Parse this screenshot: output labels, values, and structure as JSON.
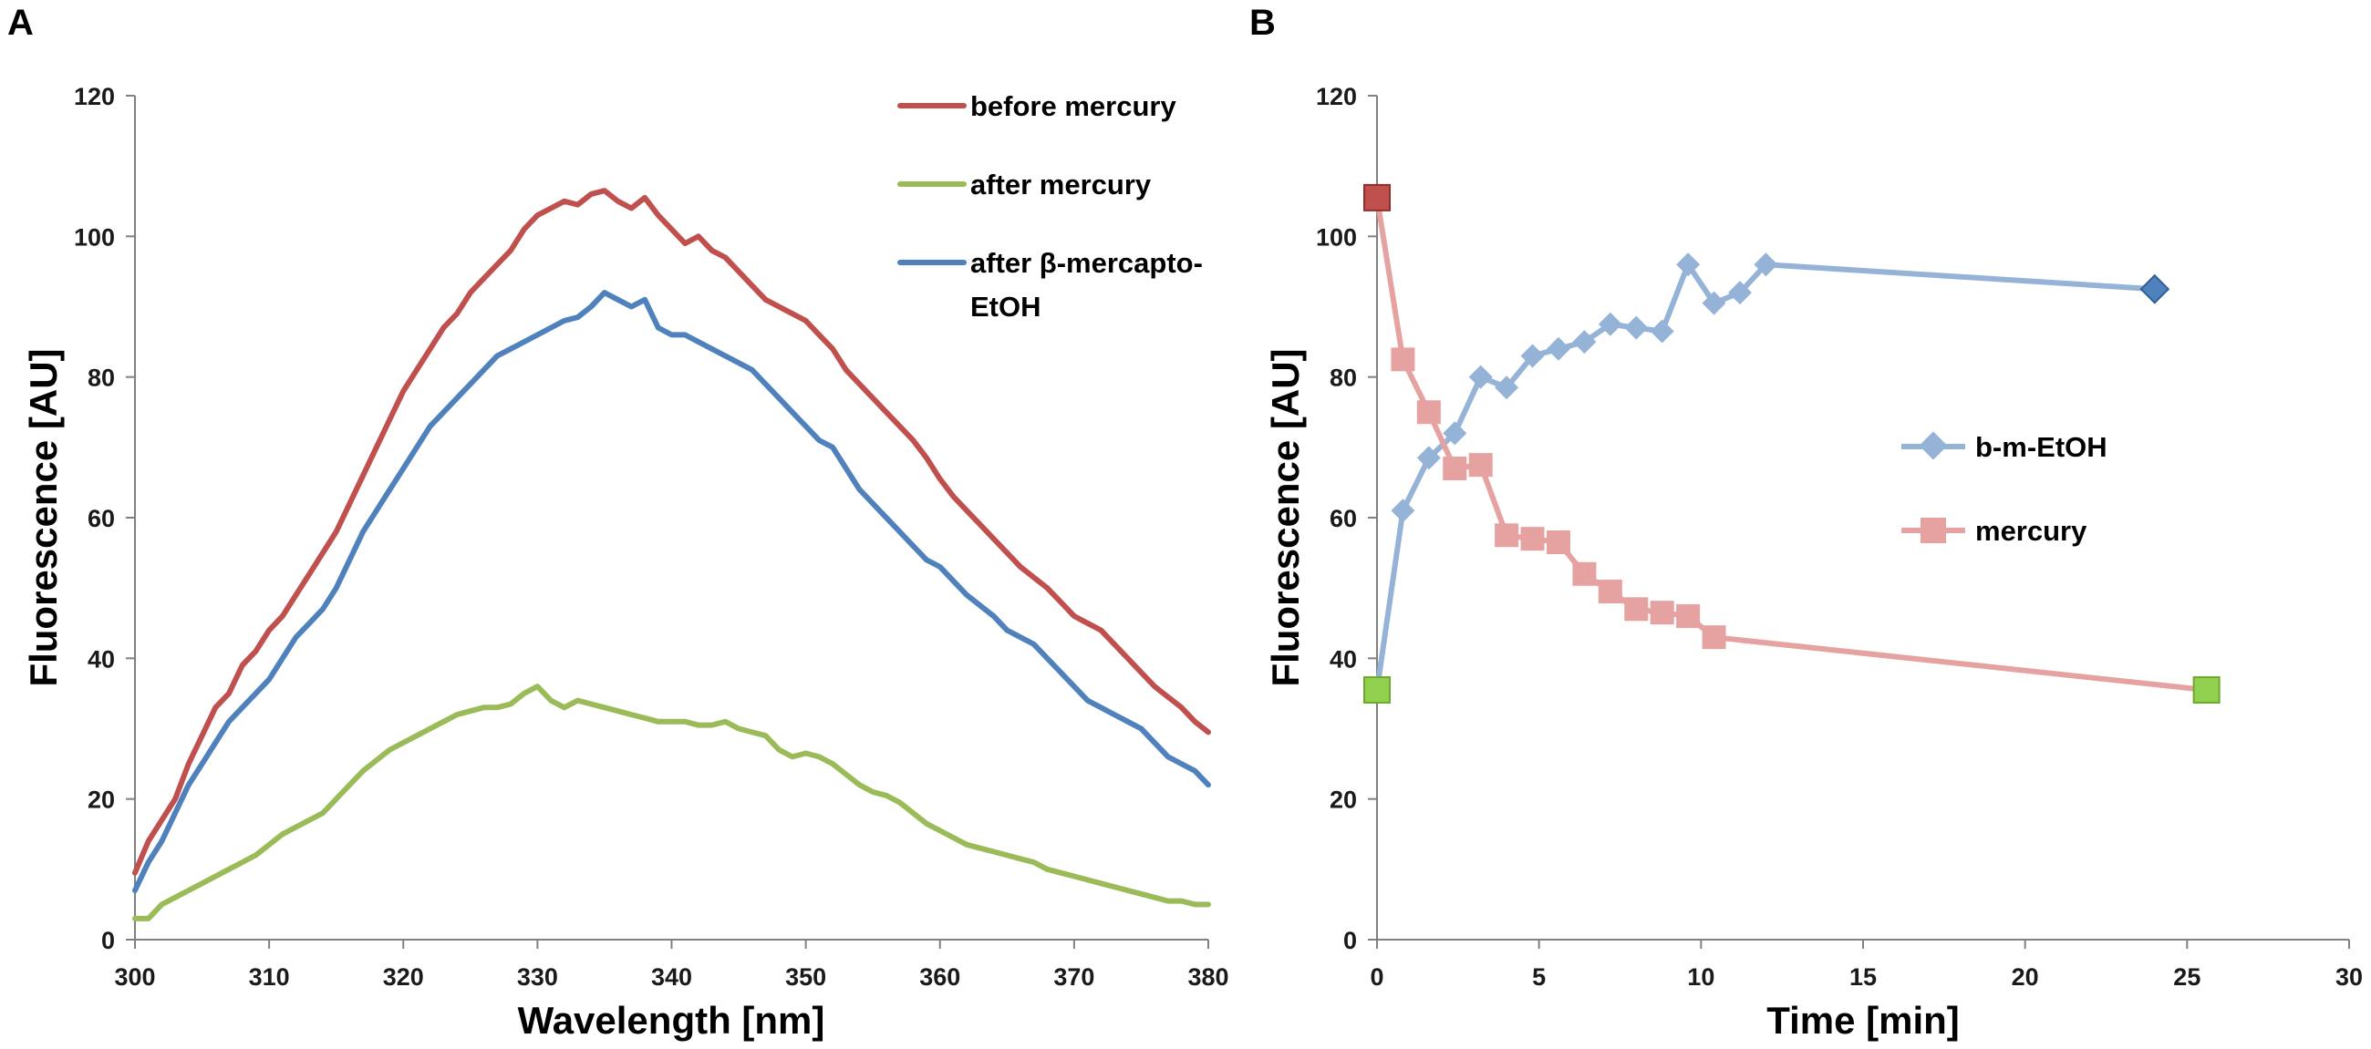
{
  "chart_data": [
    {
      "panel": "A",
      "type": "line",
      "xlabel": "Wavelength [nm]",
      "ylabel": "Fluorescence [AU]",
      "xlim": [
        300,
        380
      ],
      "ylim": [
        0,
        120
      ],
      "xticks": [
        300,
        310,
        320,
        330,
        340,
        350,
        360,
        370,
        380
      ],
      "yticks": [
        0,
        20,
        40,
        60,
        80,
        100,
        120
      ],
      "legend_position": "top-right",
      "series": [
        {
          "name": "before mercury",
          "color": "#c0504d",
          "x": [
            300,
            301,
            302,
            303,
            304,
            305,
            306,
            307,
            308,
            309,
            310,
            311,
            312,
            313,
            314,
            315,
            316,
            317,
            318,
            319,
            320,
            321,
            322,
            323,
            324,
            325,
            326,
            327,
            328,
            329,
            330,
            331,
            332,
            333,
            334,
            335,
            336,
            337,
            338,
            339,
            340,
            341,
            342,
            343,
            344,
            345,
            346,
            347,
            348,
            349,
            350,
            351,
            352,
            353,
            354,
            355,
            356,
            357,
            358,
            359,
            360,
            361,
            362,
            363,
            364,
            365,
            366,
            367,
            368,
            369,
            370,
            371,
            372,
            373,
            374,
            375,
            376,
            377,
            378,
            379,
            380
          ],
          "y": [
            9.5,
            14,
            17,
            20,
            25,
            29,
            33,
            35,
            39,
            41,
            44,
            46,
            49,
            52,
            55,
            58,
            62,
            66,
            70,
            74,
            78,
            81,
            84,
            87,
            89,
            92,
            94,
            96,
            98,
            101,
            103,
            104,
            105,
            104.5,
            106,
            106.5,
            105,
            104,
            105.5,
            103,
            101,
            99,
            100,
            98,
            97,
            95,
            93,
            91,
            90,
            89,
            88,
            86,
            84,
            81,
            79,
            77,
            75,
            73,
            71,
            68.5,
            65.5,
            63,
            61,
            59,
            57,
            55,
            53,
            51.5,
            50,
            48,
            46,
            45,
            44,
            42,
            40,
            38,
            36,
            34.5,
            33,
            31,
            29.5
          ]
        },
        {
          "name": "after mercury",
          "color": "#9bbb59",
          "x": [
            300,
            301,
            302,
            303,
            304,
            305,
            306,
            307,
            308,
            309,
            310,
            311,
            312,
            313,
            314,
            315,
            316,
            317,
            318,
            319,
            320,
            321,
            322,
            323,
            324,
            325,
            326,
            327,
            328,
            329,
            330,
            331,
            332,
            333,
            334,
            335,
            336,
            337,
            338,
            339,
            340,
            341,
            342,
            343,
            344,
            345,
            346,
            347,
            348,
            349,
            350,
            351,
            352,
            353,
            354,
            355,
            356,
            357,
            358,
            359,
            360,
            361,
            362,
            363,
            364,
            365,
            366,
            367,
            368,
            369,
            370,
            371,
            372,
            373,
            374,
            375,
            376,
            377,
            378,
            379,
            380
          ],
          "y": [
            3,
            3,
            5,
            6,
            7,
            8,
            9,
            10,
            11,
            12,
            13.5,
            15,
            16,
            17,
            18,
            20,
            22,
            24,
            25.5,
            27,
            28,
            29,
            30,
            31,
            32,
            32.5,
            33,
            33,
            33.5,
            35,
            36,
            34,
            33,
            34,
            33.5,
            33,
            32.5,
            32,
            31.5,
            31,
            31,
            31,
            30.5,
            30.5,
            31,
            30,
            29.5,
            29,
            27,
            26,
            26.5,
            26,
            25,
            23.5,
            22,
            21,
            20.5,
            19.5,
            18,
            16.5,
            15.5,
            14.5,
            13.5,
            13,
            12.5,
            12,
            11.5,
            11,
            10,
            9.5,
            9,
            8.5,
            8,
            7.5,
            7,
            6.5,
            6,
            5.5,
            5.5,
            5,
            5
          ]
        },
        {
          "name": "after β-mercapto-EtOH",
          "color": "#4f81bd",
          "x": [
            300,
            301,
            302,
            303,
            304,
            305,
            306,
            307,
            308,
            309,
            310,
            311,
            312,
            313,
            314,
            315,
            316,
            317,
            318,
            319,
            320,
            321,
            322,
            323,
            324,
            325,
            326,
            327,
            328,
            329,
            330,
            331,
            332,
            333,
            334,
            335,
            336,
            337,
            338,
            339,
            340,
            341,
            342,
            343,
            344,
            345,
            346,
            347,
            348,
            349,
            350,
            351,
            352,
            353,
            354,
            355,
            356,
            357,
            358,
            359,
            360,
            361,
            362,
            363,
            364,
            365,
            366,
            367,
            368,
            369,
            370,
            371,
            372,
            373,
            374,
            375,
            376,
            377,
            378,
            379,
            380
          ],
          "y": [
            7,
            11,
            14,
            18,
            22,
            25,
            28,
            31,
            33,
            35,
            37,
            40,
            43,
            45,
            47,
            50,
            54,
            58,
            61,
            64,
            67,
            70,
            73,
            75,
            77,
            79,
            81,
            83,
            84,
            85,
            86,
            87,
            88,
            88.5,
            90,
            92,
            91,
            90,
            91,
            87,
            86,
            86,
            85,
            84,
            83,
            82,
            81,
            79,
            77,
            75,
            73,
            71,
            70,
            67,
            64,
            62,
            60,
            58,
            56,
            54,
            53,
            51,
            49,
            47.5,
            46,
            44,
            43,
            42,
            40,
            38,
            36,
            34,
            33,
            32,
            31,
            30,
            28,
            26,
            25,
            24,
            22
          ]
        }
      ]
    },
    {
      "panel": "B",
      "type": "line",
      "xlabel": "Time [min]",
      "ylabel": "Fluorescence [AU]",
      "xlim": [
        0,
        30
      ],
      "ylim": [
        0,
        120
      ],
      "xticks": [
        0,
        5,
        10,
        15,
        20,
        25,
        30
      ],
      "yticks": [
        0,
        20,
        40,
        60,
        80,
        100,
        120
      ],
      "legend_position": "center-right",
      "series": [
        {
          "name": "b-m-EtOH",
          "color": "#95b3d7",
          "marker": "diamond",
          "x": [
            0,
            0.8,
            1.6,
            2.4,
            3.2,
            4.0,
            4.8,
            5.6,
            6.4,
            7.2,
            8.0,
            8.8,
            9.6,
            10.4,
            11.2,
            12.0,
            24.0
          ],
          "y": [
            35.5,
            61,
            68.5,
            72,
            80,
            78.5,
            83,
            84,
            85,
            87.5,
            87,
            86.5,
            96,
            90.5,
            92,
            96,
            92.5
          ],
          "highlight": {
            "x": 24.0,
            "y": 92.5,
            "color": "#4f81bd"
          }
        },
        {
          "name": "mercury",
          "color": "#e6a2a0",
          "marker": "square",
          "x": [
            0,
            0.8,
            1.6,
            2.4,
            3.2,
            4.0,
            4.8,
            5.6,
            6.4,
            7.2,
            8.0,
            8.8,
            9.6,
            10.4,
            25.6
          ],
          "y": [
            105.5,
            82.5,
            75,
            67,
            67.5,
            57.5,
            57,
            56.5,
            52,
            49.5,
            47,
            46.5,
            46,
            43,
            35.5
          ],
          "highlights": [
            {
              "x": 0,
              "y": 105.5,
              "color": "#c0504d"
            },
            {
              "x": 0,
              "y": 35.5,
              "color": "#92d050"
            },
            {
              "x": 25.6,
              "y": 35.5,
              "color": "#92d050"
            }
          ]
        }
      ]
    }
  ],
  "panel_labels": [
    "A",
    "B"
  ]
}
